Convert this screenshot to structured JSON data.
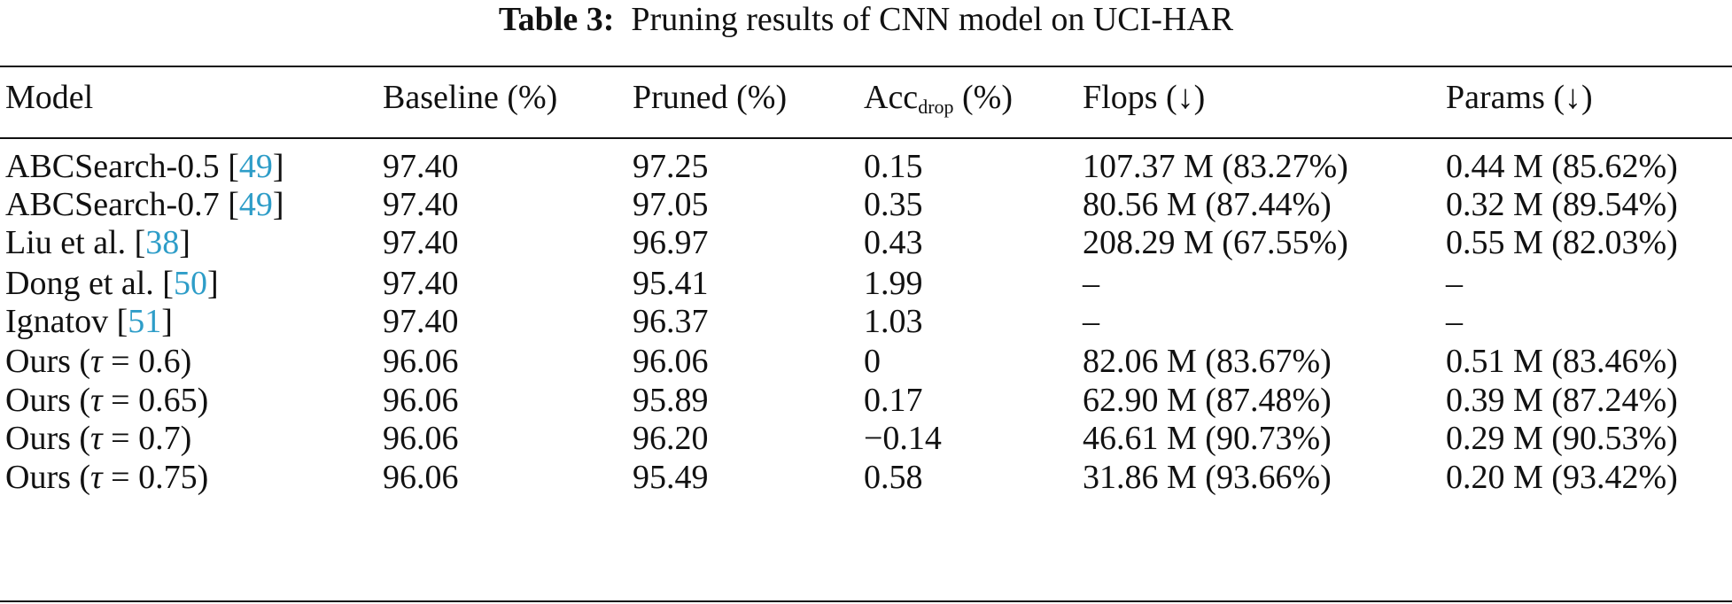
{
  "caption": {
    "label": "Table 3:",
    "text": "Pruning results of CNN model on UCI-HAR"
  },
  "table": {
    "headers": {
      "model": "Model",
      "baseline": "Baseline (%)",
      "pruned": "Pruned (%)",
      "acc_main": "Acc",
      "acc_sub": "drop",
      "acc_unit": " (%)",
      "flops": "Flops (↓)",
      "params": "Params (↓)"
    },
    "rows": [
      {
        "name": "ABCSearch-0.5 ",
        "cite": "49",
        "baseline": "97.40",
        "pruned": "97.25",
        "acc_drop": "0.15",
        "flops": "107.37 M (83.27%)",
        "params": "0.44 M (85.62%)"
      },
      {
        "name": "ABCSearch-0.7 ",
        "cite": "49",
        "baseline": "97.40",
        "pruned": "97.05",
        "acc_drop": "0.35",
        "flops": "80.56 M (87.44%)",
        "params": "0.32 M (89.54%)"
      },
      {
        "name": "Liu et al. ",
        "cite": "38",
        "baseline": "97.40",
        "pruned": "96.97",
        "acc_drop": "0.43",
        "flops": "208.29 M (67.55%)",
        "params": "0.55 M (82.03%)"
      },
      {
        "name": "Dong et al. ",
        "cite": "50",
        "baseline": "97.40",
        "pruned": "95.41",
        "acc_drop": "1.99",
        "flops": "–",
        "params": "–"
      },
      {
        "name": "Ignatov ",
        "cite": "51",
        "baseline": "97.40",
        "pruned": "96.37",
        "acc_drop": "1.03",
        "flops": "–",
        "params": "–"
      },
      {
        "name_pre": "Ours (",
        "tau": "τ",
        "tau_val": " = 0.6)",
        "baseline": "96.06",
        "pruned": "96.06",
        "acc_drop": "0",
        "flops": "82.06 M (83.67%)",
        "params": "0.51 M (83.46%)"
      },
      {
        "name_pre": "Ours (",
        "tau": "τ",
        "tau_val": " = 0.65)",
        "baseline": "96.06",
        "pruned": "95.89",
        "acc_drop": "0.17",
        "flops": "62.90 M (87.48%)",
        "params": "0.39 M (87.24%)"
      },
      {
        "name_pre": "Ours (",
        "tau": "τ",
        "tau_val": " = 0.7)",
        "baseline": "96.06",
        "pruned": "96.20",
        "acc_drop": "−0.14",
        "flops": "46.61 M (90.73%)",
        "params": "0.29 M (90.53%)"
      },
      {
        "name_pre": "Ours (",
        "tau": "τ",
        "tau_val": " = 0.75)",
        "baseline": "96.06",
        "pruned": "95.49",
        "acc_drop": "0.58",
        "flops": "31.86 M (93.66%)",
        "params": "0.20 M (93.42%)"
      }
    ]
  }
}
